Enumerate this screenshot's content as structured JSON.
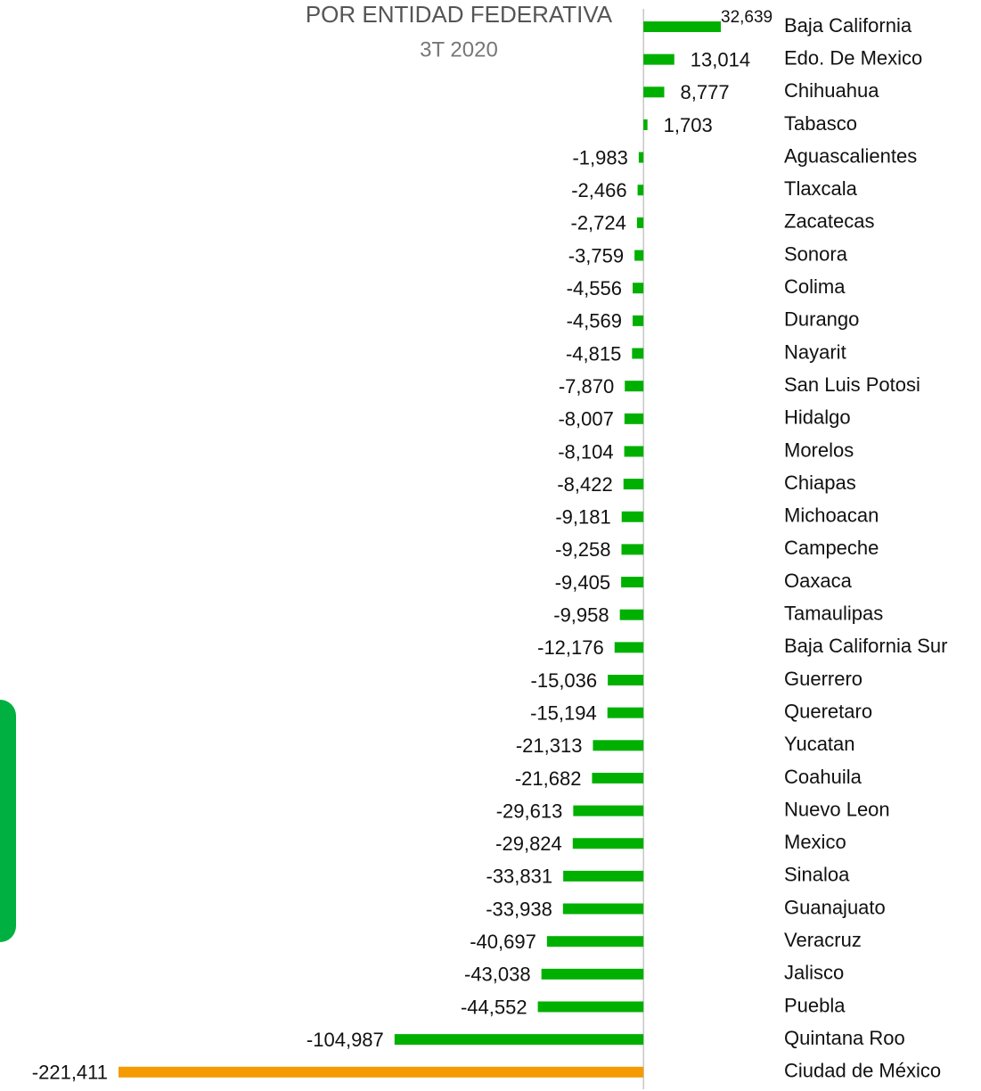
{
  "chart_data": {
    "type": "bar",
    "orientation": "horizontal",
    "title": "POR ENTIDAD FEDERATIVA",
    "subtitle": "3T 2020",
    "categories": [
      "Baja California",
      "Edo. De Mexico",
      "Chihuahua",
      "Tabasco",
      "Aguascalientes",
      "Tlaxcala",
      "Zacatecas",
      "Sonora",
      "Colima",
      "Durango",
      "Nayarit",
      "San Luis Potosi",
      "Hidalgo",
      "Morelos",
      "Chiapas",
      "Michoacan",
      "Campeche",
      "Oaxaca",
      "Tamaulipas",
      "Baja California Sur",
      "Guerrero",
      "Queretaro",
      "Yucatan",
      "Coahuila",
      "Nuevo Leon",
      "Mexico",
      "Sinaloa",
      "Guanajuato",
      "Veracruz",
      "Jalisco",
      "Puebla",
      "Quintana Roo",
      "Ciudad de México"
    ],
    "values": [
      32639,
      13014,
      8777,
      1703,
      -1983,
      -2466,
      -2724,
      -3759,
      -4556,
      -4569,
      -4815,
      -7870,
      -8007,
      -8104,
      -8422,
      -9181,
      -9258,
      -9405,
      -9958,
      -12176,
      -15036,
      -15194,
      -21313,
      -21682,
      -29613,
      -29824,
      -33831,
      -33938,
      -40697,
      -43038,
      -44552,
      -104987,
      -221411
    ],
    "value_labels": [
      "32,639",
      "13,014",
      "8,777",
      "1,703",
      "-1,983",
      "-2,466",
      "-2,724",
      "-3,759",
      "-4,556",
      "-4,569",
      "-4,815",
      "-7,870",
      "-8,007",
      "-8,104",
      "-8,422",
      "-9,181",
      "-9,258",
      "-9,405",
      "-9,958",
      "-12,176",
      "-15,036",
      "-15,194",
      "-21,313",
      "-21,682",
      "-29,613",
      "-29,824",
      "-33,831",
      "-33,938",
      "-40,697",
      "-43,038",
      "-44,552",
      "-104,987",
      "-221,411"
    ],
    "colors": [
      "#00b000",
      "#00b000",
      "#00b000",
      "#00b000",
      "#00b000",
      "#00b000",
      "#00b000",
      "#00b000",
      "#00b000",
      "#00b000",
      "#00b000",
      "#00b000",
      "#00b000",
      "#00b000",
      "#00b000",
      "#00b000",
      "#00b000",
      "#00b000",
      "#00b000",
      "#00b000",
      "#00b000",
      "#00b000",
      "#00b000",
      "#00b000",
      "#00b000",
      "#00b000",
      "#00b000",
      "#00b000",
      "#00b000",
      "#00b000",
      "#00b000",
      "#00b000",
      "#f59a00"
    ],
    "xlim": [
      -221411,
      32639
    ]
  }
}
